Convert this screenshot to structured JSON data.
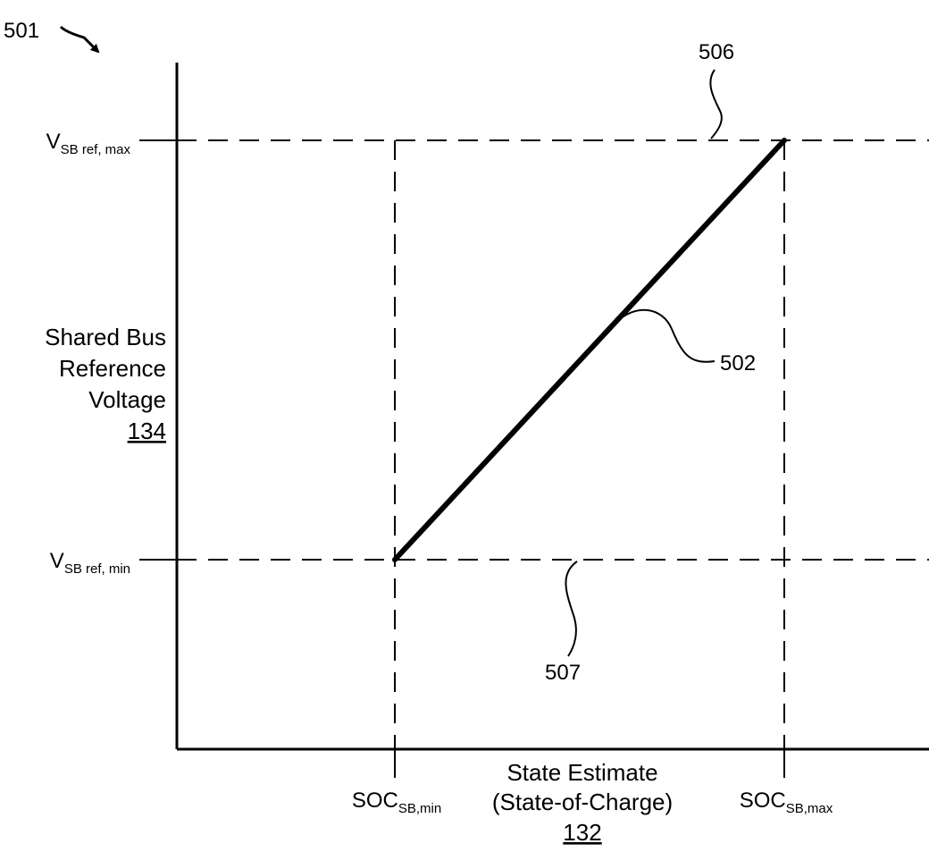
{
  "figure": {
    "ref_figure": "501",
    "ref_line": "502",
    "ref_upper": "506",
    "ref_lower": "507"
  },
  "y_axis": {
    "label_lines": [
      "Shared Bus",
      "Reference",
      "Voltage"
    ],
    "label_ref": "134",
    "ticks": {
      "max": {
        "main": "V",
        "sub": "SB ref, max"
      },
      "min": {
        "main": "V",
        "sub": "SB ref, min"
      }
    }
  },
  "x_axis": {
    "label_lines": [
      "State Estimate",
      "(State-of-Charge)"
    ],
    "label_ref": "132",
    "ticks": {
      "min": {
        "main": "SOC",
        "sub": "SB,min"
      },
      "max": {
        "main": "SOC",
        "sub": "SB,max"
      }
    }
  },
  "chart_data": {
    "type": "line",
    "series": [
      {
        "x": [
          "SOC_SB,min",
          "SOC_SB,max"
        ],
        "y": [
          "V_SB ref, min",
          "V_SB ref, max"
        ]
      }
    ],
    "reference_lines": {
      "horizontal": [
        "V_SB ref, max",
        "V_SB ref, min"
      ],
      "vertical": [
        "SOC_SB,min",
        "SOC_SB,max"
      ],
      "style": "dashed"
    },
    "grid": false
  }
}
